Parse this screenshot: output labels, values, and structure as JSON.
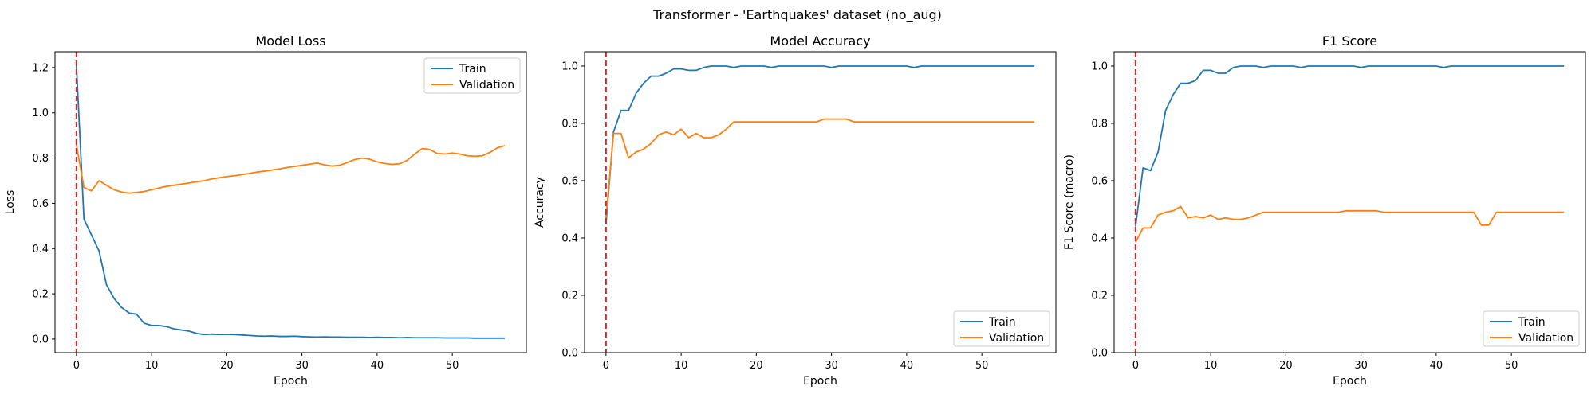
{
  "figure": {
    "title": "Transformer - 'Earthquakes' dataset (no_aug)",
    "colors": {
      "train": "#1f77b4",
      "validation": "#ff7f0e",
      "marker": "#d62728"
    }
  },
  "chart_data": [
    {
      "type": "line",
      "title": "Model Loss",
      "xlabel": "Epoch",
      "ylabel": "Loss",
      "xlim": [
        -2.85,
        59.85
      ],
      "ylim": [
        -0.06,
        1.27
      ],
      "xticks": [
        0,
        10,
        20,
        30,
        40,
        50
      ],
      "yticks": [
        0.0,
        0.2,
        0.4,
        0.6,
        0.8,
        1.0,
        1.2
      ],
      "tick_format": 1,
      "vline_x": 0,
      "legend": "top-right",
      "x": [
        0,
        1,
        2,
        3,
        4,
        5,
        6,
        7,
        8,
        9,
        10,
        11,
        12,
        13,
        14,
        15,
        16,
        17,
        18,
        19,
        20,
        21,
        22,
        23,
        24,
        25,
        26,
        27,
        28,
        29,
        30,
        31,
        32,
        33,
        34,
        35,
        36,
        37,
        38,
        39,
        40,
        41,
        42,
        43,
        44,
        45,
        46,
        47,
        48,
        49,
        50,
        51,
        52,
        53,
        54,
        55,
        56,
        57
      ],
      "series": [
        {
          "name": "Train",
          "color": "#1f77b4",
          "values": [
            1.21,
            0.53,
            0.46,
            0.39,
            0.24,
            0.18,
            0.14,
            0.115,
            0.11,
            0.07,
            0.06,
            0.06,
            0.055,
            0.045,
            0.04,
            0.035,
            0.025,
            0.02,
            0.022,
            0.02,
            0.021,
            0.02,
            0.018,
            0.016,
            0.014,
            0.013,
            0.014,
            0.012,
            0.012,
            0.013,
            0.011,
            0.01,
            0.009,
            0.01,
            0.009,
            0.009,
            0.008,
            0.008,
            0.008,
            0.007,
            0.008,
            0.007,
            0.007,
            0.006,
            0.007,
            0.006,
            0.006,
            0.006,
            0.006,
            0.005,
            0.005,
            0.005,
            0.005,
            0.004,
            0.004,
            0.004,
            0.004,
            0.004
          ]
        },
        {
          "name": "Validation",
          "color": "#ff7f0e",
          "values": [
            0.86,
            0.67,
            0.655,
            0.7,
            0.68,
            0.66,
            0.65,
            0.645,
            0.648,
            0.652,
            0.66,
            0.668,
            0.675,
            0.68,
            0.685,
            0.69,
            0.695,
            0.7,
            0.708,
            0.713,
            0.718,
            0.722,
            0.727,
            0.732,
            0.738,
            0.742,
            0.747,
            0.752,
            0.758,
            0.763,
            0.768,
            0.773,
            0.778,
            0.77,
            0.765,
            0.768,
            0.78,
            0.793,
            0.8,
            0.795,
            0.783,
            0.776,
            0.772,
            0.775,
            0.79,
            0.818,
            0.842,
            0.838,
            0.82,
            0.818,
            0.822,
            0.818,
            0.81,
            0.808,
            0.81,
            0.825,
            0.845,
            0.855
          ]
        }
      ]
    },
    {
      "type": "line",
      "title": "Model Accuracy",
      "xlabel": "Epoch",
      "ylabel": "Accuracy",
      "xlim": [
        -2.85,
        59.85
      ],
      "ylim": [
        0.0,
        1.05
      ],
      "xticks": [
        0,
        10,
        20,
        30,
        40,
        50
      ],
      "yticks": [
        0.0,
        0.2,
        0.4,
        0.6,
        0.8,
        1.0
      ],
      "tick_format": 1,
      "vline_x": 0,
      "legend": "bottom-right",
      "x": [
        0,
        1,
        2,
        3,
        4,
        5,
        6,
        7,
        8,
        9,
        10,
        11,
        12,
        13,
        14,
        15,
        16,
        17,
        18,
        19,
        20,
        21,
        22,
        23,
        24,
        25,
        26,
        27,
        28,
        29,
        30,
        31,
        32,
        33,
        34,
        35,
        36,
        37,
        38,
        39,
        40,
        41,
        42,
        43,
        44,
        45,
        46,
        47,
        48,
        49,
        50,
        51,
        52,
        53,
        54,
        55,
        56,
        57
      ],
      "series": [
        {
          "name": "Train",
          "color": "#1f77b4",
          "values": [
            0.45,
            0.77,
            0.845,
            0.845,
            0.905,
            0.94,
            0.965,
            0.965,
            0.975,
            0.99,
            0.99,
            0.985,
            0.985,
            0.995,
            1.0,
            1.0,
            1.0,
            0.995,
            1.0,
            1.0,
            1.0,
            1.0,
            0.995,
            1.0,
            1.0,
            1.0,
            1.0,
            1.0,
            1.0,
            1.0,
            0.995,
            1.0,
            1.0,
            1.0,
            1.0,
            1.0,
            1.0,
            1.0,
            1.0,
            1.0,
            1.0,
            0.995,
            1.0,
            1.0,
            1.0,
            1.0,
            1.0,
            1.0,
            1.0,
            1.0,
            1.0,
            1.0,
            1.0,
            1.0,
            1.0,
            1.0,
            1.0,
            1.0
          ]
        },
        {
          "name": "Validation",
          "color": "#ff7f0e",
          "values": [
            0.47,
            0.765,
            0.765,
            0.68,
            0.7,
            0.71,
            0.73,
            0.76,
            0.77,
            0.76,
            0.78,
            0.75,
            0.765,
            0.75,
            0.75,
            0.76,
            0.78,
            0.805,
            0.805,
            0.805,
            0.805,
            0.805,
            0.805,
            0.805,
            0.805,
            0.805,
            0.805,
            0.805,
            0.805,
            0.815,
            0.815,
            0.815,
            0.815,
            0.805,
            0.805,
            0.805,
            0.805,
            0.805,
            0.805,
            0.805,
            0.805,
            0.805,
            0.805,
            0.805,
            0.805,
            0.805,
            0.805,
            0.805,
            0.805,
            0.805,
            0.805,
            0.805,
            0.805,
            0.805,
            0.805,
            0.805,
            0.805,
            0.805
          ]
        }
      ]
    },
    {
      "type": "line",
      "title": "F1 Score",
      "xlabel": "Epoch",
      "ylabel": "F1 Score (macro)",
      "xlim": [
        -2.85,
        59.85
      ],
      "ylim": [
        0.0,
        1.05
      ],
      "xticks": [
        0,
        10,
        20,
        30,
        40,
        50
      ],
      "yticks": [
        0.0,
        0.2,
        0.4,
        0.6,
        0.8,
        1.0
      ],
      "tick_format": 1,
      "vline_x": 0,
      "legend": "bottom-right",
      "x": [
        0,
        1,
        2,
        3,
        4,
        5,
        6,
        7,
        8,
        9,
        10,
        11,
        12,
        13,
        14,
        15,
        16,
        17,
        18,
        19,
        20,
        21,
        22,
        23,
        24,
        25,
        26,
        27,
        28,
        29,
        30,
        31,
        32,
        33,
        34,
        35,
        36,
        37,
        38,
        39,
        40,
        41,
        42,
        43,
        44,
        45,
        46,
        47,
        48,
        49,
        50,
        51,
        52,
        53,
        54,
        55,
        56,
        57
      ],
      "series": [
        {
          "name": "Train",
          "color": "#1f77b4",
          "values": [
            0.44,
            0.645,
            0.635,
            0.7,
            0.845,
            0.9,
            0.94,
            0.94,
            0.95,
            0.985,
            0.985,
            0.975,
            0.975,
            0.995,
            1.0,
            1.0,
            1.0,
            0.995,
            1.0,
            1.0,
            1.0,
            1.0,
            0.995,
            1.0,
            1.0,
            1.0,
            1.0,
            1.0,
            1.0,
            1.0,
            0.995,
            1.0,
            1.0,
            1.0,
            1.0,
            1.0,
            1.0,
            1.0,
            1.0,
            1.0,
            1.0,
            0.995,
            1.0,
            1.0,
            1.0,
            1.0,
            1.0,
            1.0,
            1.0,
            1.0,
            1.0,
            1.0,
            1.0,
            1.0,
            1.0,
            1.0,
            1.0,
            1.0
          ]
        },
        {
          "name": "Validation",
          "color": "#ff7f0e",
          "values": [
            0.385,
            0.435,
            0.435,
            0.48,
            0.49,
            0.495,
            0.51,
            0.47,
            0.475,
            0.47,
            0.48,
            0.465,
            0.47,
            0.465,
            0.465,
            0.47,
            0.48,
            0.49,
            0.49,
            0.49,
            0.49,
            0.49,
            0.49,
            0.49,
            0.49,
            0.49,
            0.49,
            0.49,
            0.495,
            0.495,
            0.495,
            0.495,
            0.495,
            0.49,
            0.49,
            0.49,
            0.49,
            0.49,
            0.49,
            0.49,
            0.49,
            0.49,
            0.49,
            0.49,
            0.49,
            0.49,
            0.445,
            0.445,
            0.49,
            0.49,
            0.49,
            0.49,
            0.49,
            0.49,
            0.49,
            0.49,
            0.49,
            0.49
          ]
        }
      ]
    }
  ]
}
